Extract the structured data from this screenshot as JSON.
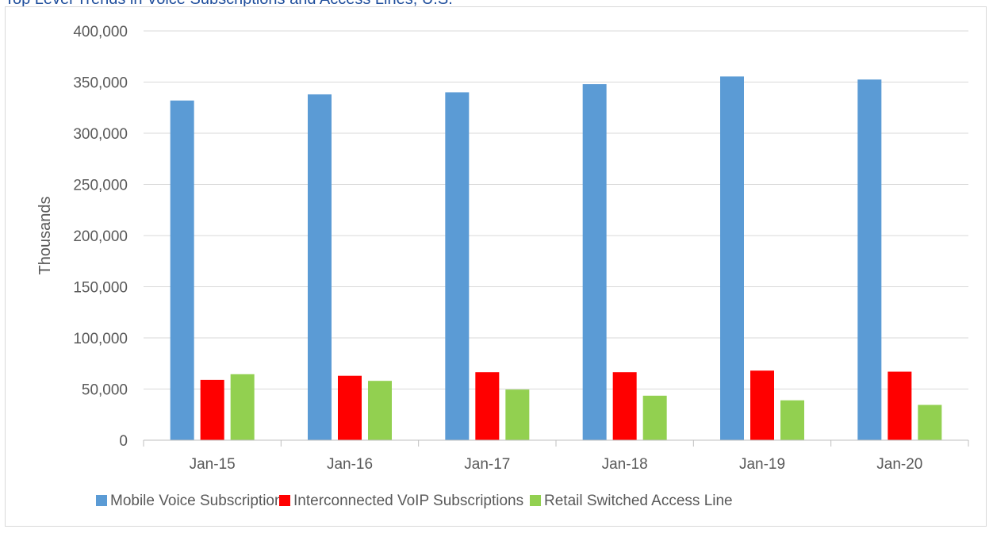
{
  "title": "Top Level Trends in Voice Subscriptions and Access Lines, U.S.",
  "chart_data": {
    "type": "bar",
    "categories": [
      "Jan-15",
      "Jan-16",
      "Jan-17",
      "Jan-18",
      "Jan-19",
      "Jan-20"
    ],
    "series": [
      {
        "name": "Mobile Voice Subscriptions",
        "color": "#5b9bd5",
        "values": [
          332000,
          338000,
          340000,
          348000,
          355500,
          352500
        ]
      },
      {
        "name": "Interconnected VoIP Subscriptions",
        "color": "#ff0000",
        "values": [
          59000,
          63000,
          66500,
          66500,
          68000,
          67000
        ]
      },
      {
        "name": "Retail Switched Access Line",
        "color": "#92d050",
        "values": [
          64500,
          58000,
          49500,
          43500,
          39000,
          34500
        ]
      }
    ],
    "ylabel": "Thousands",
    "xlabel": "",
    "ylim": [
      0,
      400000
    ],
    "yticks": [
      "0",
      "50,000",
      "100,000",
      "150,000",
      "200,000",
      "250,000",
      "300,000",
      "350,000",
      "400,000"
    ],
    "grid": true,
    "legend_position": "bottom"
  }
}
